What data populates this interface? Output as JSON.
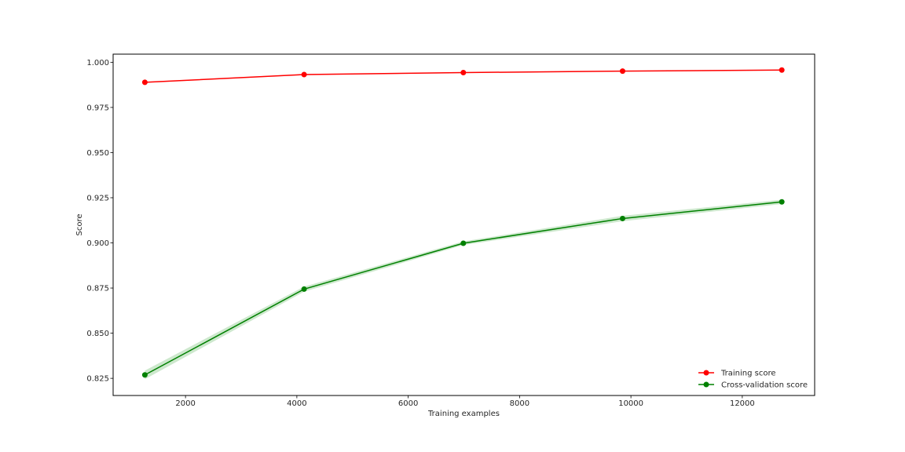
{
  "chart_data": {
    "type": "line",
    "title": "",
    "xlabel": "Training examples",
    "ylabel": "Score",
    "x": [
      1270,
      4130,
      6990,
      9850,
      12710
    ],
    "xlim": [
      700,
      13300
    ],
    "ylim": [
      0.8155,
      1.0045
    ],
    "xticks": [
      2000,
      4000,
      6000,
      8000,
      10000,
      12000
    ],
    "xtick_labels": [
      "2000",
      "4000",
      "6000",
      "8000",
      "10000",
      "12000"
    ],
    "yticks": [
      0.825,
      0.85,
      0.875,
      0.9,
      0.925,
      0.95,
      0.975,
      1.0
    ],
    "ytick_labels": [
      "0.825",
      "0.850",
      "0.875",
      "0.900",
      "0.925",
      "0.950",
      "0.975",
      "1.000"
    ],
    "grid": false,
    "legend_position": "lower-right",
    "series": [
      {
        "name": "Training score",
        "color": "#ff0000",
        "marker": "circle",
        "values": [
          0.9889,
          0.9932,
          0.9943,
          0.9951,
          0.9957
        ],
        "band_lower": [
          0.9886,
          0.9929,
          0.9941,
          0.9949,
          0.9955
        ],
        "band_upper": [
          0.9892,
          0.9935,
          0.9945,
          0.9953,
          0.9959
        ]
      },
      {
        "name": "Cross-validation score",
        "color": "#008000",
        "band_color": "#c8e6c8",
        "marker": "circle",
        "values": [
          0.8269,
          0.8744,
          0.8998,
          0.9135,
          0.9227
        ],
        "band_lower": [
          0.8245,
          0.873,
          0.8988,
          0.912,
          0.9215
        ],
        "band_upper": [
          0.8293,
          0.8758,
          0.9008,
          0.915,
          0.9239
        ]
      }
    ]
  }
}
